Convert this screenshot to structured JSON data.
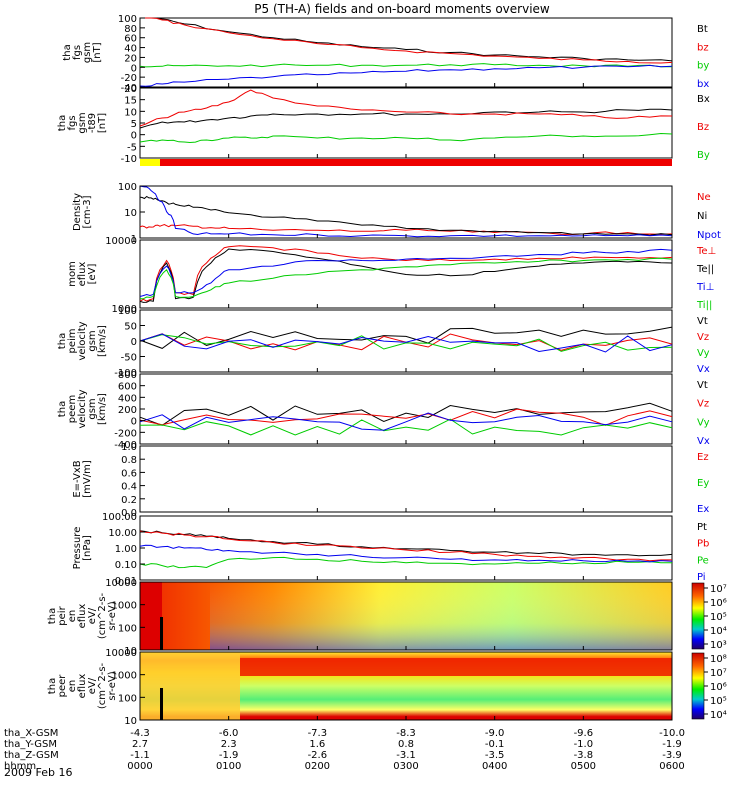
{
  "title": "P5 (TH-A) fields and on-board moments overview",
  "date_label": "2009 Feb 16",
  "colors": {
    "black": "#000000",
    "red": "#ee0000",
    "green": "#00cc00",
    "blue": "#0000ee",
    "yellow": "#ffff00"
  },
  "bottom_axis": {
    "row_labels": [
      "tha_X-GSM",
      "tha_Y-GSM",
      "tha_Z-GSM",
      "hhmm"
    ],
    "ticks": [
      {
        "x": "-4.3",
        "y": "2.7",
        "z": "-1.1",
        "t": "0000"
      },
      {
        "x": "-6.0",
        "y": "2.3",
        "z": "-1.9",
        "t": "0100"
      },
      {
        "x": "-7.3",
        "y": "1.6",
        "z": "-2.6",
        "t": "0200"
      },
      {
        "x": "-8.3",
        "y": "0.8",
        "z": "-3.1",
        "t": "0300"
      },
      {
        "x": "-9.0",
        "y": "-0.1",
        "z": "-3.5",
        "t": "0400"
      },
      {
        "x": "-9.6",
        "y": "-1.0",
        "z": "-3.8",
        "t": "0500"
      },
      {
        "x": "-10.0",
        "y": "-1.9",
        "z": "-3.9",
        "t": "0600"
      }
    ]
  },
  "chart_data": [
    {
      "type": "line",
      "ylabel": [
        "tha",
        "fgs",
        "gsm",
        "[nT]"
      ],
      "yscale": "linear",
      "ylim": [
        -40,
        100
      ],
      "yticks": [
        "100",
        "80",
        "60",
        "40",
        "20",
        "0",
        "-20",
        "-40"
      ],
      "legend": [
        "Bt",
        "bz",
        "by",
        "bx"
      ],
      "x": [
        0,
        0.25,
        0.5,
        1,
        1.5,
        2,
        2.5,
        3,
        3.5,
        4,
        4.5,
        5,
        5.5,
        6
      ],
      "series": [
        {
          "name": "Bt",
          "color": "black",
          "values": [
            108,
            98,
            88,
            72,
            60,
            50,
            42,
            36,
            30,
            25,
            21,
            18,
            15,
            13
          ]
        },
        {
          "name": "bz",
          "color": "red",
          "values": [
            106,
            96,
            86,
            70,
            58,
            48,
            40,
            33,
            28,
            23,
            18,
            15,
            12,
            10
          ]
        },
        {
          "name": "by",
          "color": "green",
          "values": [
            2,
            2,
            3,
            3,
            4,
            4,
            4,
            4,
            5,
            5,
            4,
            3,
            2,
            1
          ]
        },
        {
          "name": "bx",
          "color": "blue",
          "values": [
            -38,
            -34,
            -30,
            -24,
            -19,
            -15,
            -11,
            -8,
            -5,
            -3,
            -1,
            0,
            1,
            2
          ]
        }
      ]
    },
    {
      "type": "line",
      "ylabel": [
        "tha",
        "fgs",
        "gsm",
        "-t89",
        "[nT]"
      ],
      "yscale": "linear",
      "ylim": [
        -15,
        20
      ],
      "yticks": [
        "20",
        "15",
        "10",
        "5",
        "0",
        "-5",
        "-10"
      ],
      "legend": [
        "Bx",
        "Bz",
        "By"
      ],
      "x": [
        0,
        0.25,
        0.5,
        0.75,
        1,
        1.25,
        1.5,
        2,
        2.5,
        3,
        3.5,
        4,
        4.5,
        5,
        5.5,
        6
      ],
      "series": [
        {
          "name": "Bx",
          "color": "black",
          "values": [
            0,
            3,
            3,
            4,
            5,
            6,
            7,
            7,
            7,
            7,
            7,
            8,
            8,
            8,
            9,
            9
          ]
        },
        {
          "name": "Bz",
          "color": "red",
          "values": [
            1,
            5,
            8,
            10,
            13,
            19,
            15,
            11,
            9,
            8,
            7,
            7,
            7,
            6,
            5,
            6
          ]
        },
        {
          "name": "By",
          "color": "green",
          "values": [
            -7,
            -6,
            -7,
            -6,
            -5,
            -5,
            -4,
            -5,
            -5,
            -5,
            -6,
            -5,
            -4,
            -4,
            -4,
            -3
          ]
        }
      ]
    },
    {
      "type": "line",
      "ylabel": [
        "Density",
        "[cm-3]"
      ],
      "yscale": "log",
      "ylim": [
        0.3,
        200
      ],
      "yticks": [
        "100",
        "10",
        "1"
      ],
      "legend": [
        "Ne",
        "Ni",
        "Npot"
      ],
      "x": [
        0,
        0.1,
        0.2,
        0.3,
        0.4,
        0.6,
        0.8,
        1,
        1.5,
        2,
        2.5,
        3,
        3.5,
        4,
        4.5,
        5,
        5.5,
        6
      ],
      "series": [
        {
          "name": "Ne",
          "color": "red",
          "values": [
            1.2,
            1.2,
            1.5,
            1.4,
            1.4,
            1.3,
            1.1,
            1,
            0.8,
            0.8,
            0.7,
            0.8,
            0.7,
            0.6,
            0.6,
            0.5,
            0.6,
            0.5
          ]
        },
        {
          "name": "Ni",
          "color": "black",
          "values": [
            50,
            45,
            35,
            25,
            20,
            14,
            10,
            7,
            4,
            2.5,
            1.5,
            1,
            0.8,
            0.7,
            0.6,
            0.5,
            0.5,
            0.45
          ]
        },
        {
          "name": "Npot",
          "color": "blue",
          "values": [
            200,
            150,
            40,
            8,
            1,
            0.5,
            0.5,
            0.5,
            0.45,
            0.45,
            0.4,
            0.4,
            0.4,
            0.4,
            0.4,
            0.4,
            0.4,
            0.4
          ]
        }
      ]
    },
    {
      "type": "line",
      "ylabel": [
        "mom",
        "eflux",
        "[eV]"
      ],
      "yscale": "log",
      "ylim": [
        200,
        12000
      ],
      "yticks": [
        "10000",
        "1000"
      ],
      "legend": [
        "Te⊥",
        "Te||",
        "Ti⊥",
        "Ti||"
      ],
      "x": [
        0,
        0.15,
        0.3,
        0.4,
        0.6,
        0.8,
        1,
        1.5,
        2,
        2.5,
        3,
        3.5,
        4,
        4.5,
        5,
        5.5,
        6
      ],
      "series": [
        {
          "name": "Te⊥",
          "color": "red",
          "values": [
            300,
            350,
            3500,
            500,
            450,
            4000,
            8000,
            7500,
            5500,
            4000,
            3500,
            3500,
            3800,
            4000,
            4000,
            4200,
            4200
          ]
        },
        {
          "name": "Te||",
          "color": "black",
          "values": [
            300,
            300,
            3000,
            350,
            380,
            3000,
            7000,
            6000,
            4000,
            2500,
            1500,
            1400,
            1800,
            2500,
            3000,
            3200,
            3000
          ]
        },
        {
          "name": "Ti⊥",
          "color": "blue",
          "values": [
            400,
            450,
            2500,
            500,
            500,
            900,
            2000,
            2500,
            3500,
            3500,
            3800,
            4000,
            4500,
            5000,
            5500,
            6000,
            6500
          ]
        },
        {
          "name": "Ti||",
          "color": "green",
          "values": [
            350,
            400,
            2000,
            400,
            400,
            600,
            900,
            1200,
            1600,
            2000,
            2400,
            2700,
            3000,
            3300,
            3500,
            3700,
            3800
          ]
        }
      ]
    },
    {
      "type": "line",
      "ylabel": [
        "tha",
        "peim",
        "velocity",
        "gsm",
        "[km/s]"
      ],
      "yscale": "linear",
      "ylim": [
        -100,
        100
      ],
      "yticks": [
        "100",
        "50",
        "0",
        "-50",
        "-100"
      ],
      "legend": [
        "Vt",
        "Vz",
        "Vy",
        "Vx"
      ],
      "x": [
        0,
        1,
        2,
        3,
        4,
        5,
        6
      ],
      "series": [
        {
          "name": "Vt",
          "color": "black",
          "values": [
            3,
            5,
            8,
            15,
            25,
            35,
            45
          ]
        },
        {
          "name": "Vz",
          "color": "red",
          "values": [
            0,
            0,
            -2,
            -4,
            -6,
            -10,
            -10
          ]
        },
        {
          "name": "Vy",
          "color": "green",
          "values": [
            0,
            -2,
            -3,
            -6,
            -10,
            -15,
            -20
          ]
        },
        {
          "name": "Vx",
          "color": "blue",
          "values": [
            0,
            -1,
            -2,
            -4,
            -6,
            -10,
            -12
          ]
        }
      ]
    },
    {
      "type": "line",
      "ylabel": [
        "tha",
        "peem",
        "velocity",
        "gsm",
        "[km/s]"
      ],
      "yscale": "linear",
      "ylim": [
        -400,
        800
      ],
      "yticks": [
        "800",
        "600",
        "400",
        "200",
        "0",
        "-200",
        "-400"
      ],
      "legend": [
        "Vt",
        "Vz",
        "Vy",
        "Vx"
      ],
      "x": [
        0,
        1,
        2,
        3,
        4,
        5,
        6
      ],
      "series": [
        {
          "name": "Vt",
          "color": "black",
          "values": [
            60,
            90,
            110,
            130,
            140,
            150,
            160
          ]
        },
        {
          "name": "Vz",
          "color": "red",
          "values": [
            10,
            20,
            30,
            40,
            50,
            60,
            70
          ]
        },
        {
          "name": "Vy",
          "color": "green",
          "values": [
            -80,
            -90,
            -100,
            -110,
            -110,
            -120,
            -120
          ]
        },
        {
          "name": "Vx",
          "color": "blue",
          "values": [
            -20,
            -30,
            -20,
            -20,
            -20,
            -20,
            -20
          ]
        }
      ]
    },
    {
      "type": "line",
      "ylabel": [
        "E=-VxB",
        "[mV/m]"
      ],
      "yscale": "linear",
      "ylim": [
        0,
        1
      ],
      "yticks": [
        "1.0",
        "0.8",
        "0.6",
        "0.4",
        "0.2",
        "0.0"
      ],
      "legend": [
        "Ez",
        "Ey",
        "Ex"
      ],
      "series": []
    },
    {
      "type": "line",
      "ylabel": [
        "Pressure",
        "[nPa]"
      ],
      "yscale": "log",
      "ylim": [
        0.01,
        100
      ],
      "yticks": [
        "100.00",
        "10.00",
        "1.00",
        "0.10",
        "0.01"
      ],
      "legend": [
        "Pt",
        "Pb",
        "Pe",
        "Pi"
      ],
      "x": [
        0,
        0.25,
        0.5,
        0.75,
        1,
        1.5,
        2,
        2.5,
        3,
        3.5,
        4,
        4.5,
        5,
        5.5,
        6
      ],
      "series": [
        {
          "name": "Pt",
          "color": "black",
          "values": [
            12,
            9,
            7,
            5.5,
            4,
            2.5,
            1.7,
            1.2,
            0.9,
            0.7,
            0.55,
            0.45,
            0.4,
            0.38,
            0.4
          ]
        },
        {
          "name": "Pb",
          "color": "red",
          "values": [
            11.5,
            8.5,
            6.5,
            5,
            3.6,
            2.2,
            1.5,
            1,
            0.75,
            0.55,
            0.4,
            0.3,
            0.25,
            0.2,
            0.18
          ]
        },
        {
          "name": "Pe",
          "color": "green",
          "values": [
            0.1,
            0.08,
            0.06,
            0.06,
            0.2,
            0.25,
            0.2,
            0.15,
            0.12,
            0.11,
            0.1,
            0.11,
            0.12,
            0.13,
            0.12
          ]
        },
        {
          "name": "Pi",
          "color": "blue",
          "values": [
            1.3,
            1.2,
            1,
            0.8,
            0.7,
            0.5,
            0.4,
            0.3,
            0.25,
            0.2,
            0.18,
            0.17,
            0.16,
            0.15,
            0.15
          ]
        }
      ]
    },
    {
      "type": "heatmap",
      "ylabel": [
        "tha",
        "peir",
        "en",
        "eflux",
        "eV/",
        "(cm^2-s-",
        "sr-eV)"
      ],
      "yscale": "log",
      "ylim": [
        7,
        30000
      ],
      "yticks": [
        "10000",
        "1000",
        "100",
        "10"
      ],
      "colorbar_ticks": [
        "10⁷",
        "10⁶",
        "10⁵",
        "10⁴",
        "10³"
      ]
    },
    {
      "type": "heatmap",
      "ylabel": [
        "tha",
        "peer",
        "en",
        "eflux",
        "eV/",
        "(cm^2-s-",
        "sr-eV)"
      ],
      "yscale": "log",
      "ylim": [
        7,
        30000
      ],
      "yticks": [
        "10000",
        "1000",
        "100",
        "10"
      ],
      "colorbar_ticks": [
        "10⁸",
        "10⁷",
        "10⁶",
        "10⁵",
        "10⁴"
      ]
    }
  ]
}
